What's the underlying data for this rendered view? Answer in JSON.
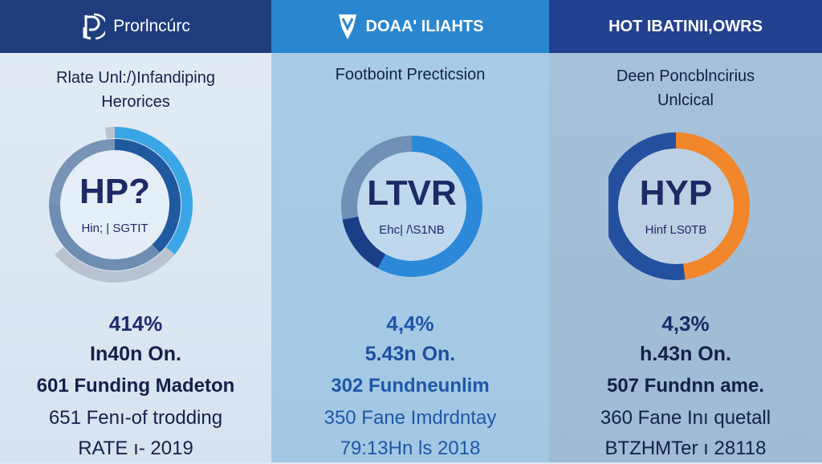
{
  "panels": [
    {
      "header": "Prorlncúrc",
      "header_icon": "shield-logo-icon",
      "subtitle": [
        "Rlate Unl:/)Infandiping",
        "Herorices"
      ],
      "donut_label": "HP?",
      "donut_caption": "Hin; | SGTIT",
      "segments": [
        {
          "from": 0.98,
          "to": 0.64,
          "ring": "outer",
          "color": "#b9c3cf"
        },
        {
          "from": 0.0,
          "to": 0.36,
          "ring": "outer",
          "color": "#3aa6e6"
        },
        {
          "from": 0.75,
          "to": 1.0,
          "ring": "inner",
          "color": "#7893b5"
        },
        {
          "from": 0.0,
          "to": 0.38,
          "ring": "inner",
          "color": "#1f5aa0"
        },
        {
          "from": 0.38,
          "to": 0.75,
          "ring": "inner",
          "color": "#6f8cb3"
        }
      ],
      "percent": "414%",
      "amount": "In40n On.",
      "funding": "601 Funding Madeton",
      "line1": "651 Fen⁠ı-of trodding",
      "line2": "RATE ı- 2019"
    },
    {
      "header": "DOAA' ILIAHTS",
      "header_icon": "shield-v-logo-icon",
      "subtitle": [
        "Footboint Precticsion"
      ],
      "donut_label": "LTVR",
      "donut_caption": "Ehc| /\\S1NB",
      "segments": [
        {
          "from": 0.0,
          "to": 0.58,
          "ring": "single",
          "color": "#2c88d8"
        },
        {
          "from": 0.58,
          "to": 0.72,
          "ring": "single",
          "color": "#1b3f86"
        },
        {
          "from": 0.72,
          "to": 1.0,
          "ring": "single",
          "color": "#7090b6"
        }
      ],
      "percent": "4,4%",
      "amount": "5.43n On.",
      "funding": "302 Fundneunlim",
      "line1": "350 Fane Imdrdntay",
      "line2": "79:13Hn ls 2018"
    },
    {
      "header": "HOT IBATINII,OWRS",
      "header_icon": "",
      "subtitle": [
        "Deen Poncblncirius",
        "Unlcical"
      ],
      "donut_label": "HYP",
      "donut_caption": "Hinf LS0TB",
      "segments": [
        {
          "from": 0.0,
          "to": 0.48,
          "ring": "single",
          "color": "#f2862a"
        },
        {
          "from": 0.48,
          "to": 1.0,
          "ring": "single",
          "color": "#2450a0"
        }
      ],
      "percent": "4,3%",
      "amount": "h.43n On.",
      "funding": "507 Fundnn ame.",
      "line1": "360 Fane Inı quetall",
      "line2": "BTZHMTer ı 28118"
    }
  ]
}
